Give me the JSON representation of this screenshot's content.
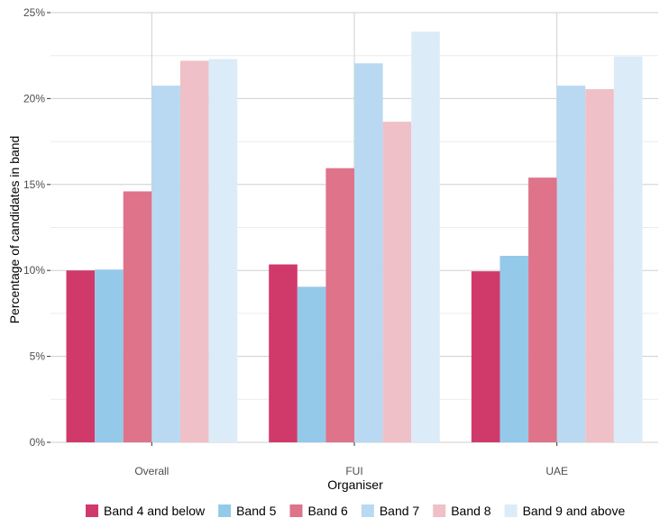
{
  "chart_data": {
    "type": "bar",
    "xlabel": "Organiser",
    "ylabel": "Percentage of candidates in band",
    "categories": [
      "Overall",
      "FUI",
      "UAE"
    ],
    "ylim": [
      0,
      25
    ],
    "yticks": [
      0,
      5,
      10,
      15,
      20,
      25
    ],
    "ytick_labels": [
      "0%",
      "5%",
      "10%",
      "15%",
      "20%",
      "25%"
    ],
    "grid": true,
    "legend_position": "bottom",
    "series": [
      {
        "name": "Band 4 and below",
        "color": "#d03a6a",
        "values": [
          10.0,
          10.35,
          9.95
        ]
      },
      {
        "name": "Band 5",
        "color": "#94c9ea",
        "values": [
          10.05,
          9.05,
          10.85
        ]
      },
      {
        "name": "Band 6",
        "color": "#de7389",
        "values": [
          14.6,
          15.95,
          15.4
        ]
      },
      {
        "name": "Band 7",
        "color": "#b8d9f1",
        "values": [
          20.75,
          22.05,
          20.75
        ]
      },
      {
        "name": "Band 8",
        "color": "#efc0c7",
        "values": [
          22.2,
          18.65,
          20.55
        ]
      },
      {
        "name": "Band 9 and above",
        "color": "#dcebf8",
        "values": [
          22.3,
          23.9,
          22.45
        ]
      }
    ]
  }
}
